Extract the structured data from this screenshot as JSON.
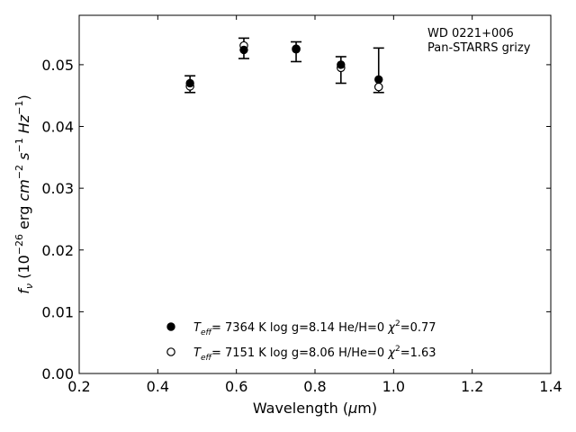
{
  "chart_data": {
    "type": "scatter",
    "title": "",
    "xlabel": "Wavelength",
    "xlabel_unit_prefix": "μ",
    "xlabel_unit": "m",
    "ylabel_prefix": "f",
    "ylabel_sub": "ν",
    "ylabel_scale": "(10",
    "ylabel_scale_exp": "−26",
    "ylabel_unit_erg": " erg ",
    "ylabel_unit_cm": "cm",
    "ylabel_unit_cm_exp": "−2",
    "ylabel_unit_s": "s",
    "ylabel_unit_s_exp": "−1",
    "ylabel_unit_Hz": "Hz",
    "ylabel_unit_Hz_exp": "−1",
    "ylabel_close": ")",
    "xlim": [
      0.2,
      1.4
    ],
    "ylim": [
      0.0,
      0.058
    ],
    "xticks": [
      0.2,
      0.4,
      0.6,
      0.8,
      1.0,
      1.2,
      1.4
    ],
    "xtick_labels": [
      "0.2",
      "0.4",
      "0.6",
      "0.8",
      "1.0",
      "1.2",
      "1.4"
    ],
    "yticks": [
      0.0,
      0.01,
      0.02,
      0.03,
      0.04,
      0.05
    ],
    "ytick_labels": [
      "0.00",
      "0.01",
      "0.02",
      "0.03",
      "0.04",
      "0.05"
    ],
    "grid": false,
    "annotation": [
      "WD 0221+006",
      "Pan-STARRS grizy"
    ],
    "annotation_position": "top-right",
    "observed": {
      "x": [
        0.482,
        0.619,
        0.752,
        0.866,
        0.962
      ],
      "y_low": [
        0.0455,
        0.051,
        0.0505,
        0.047,
        0.0455
      ],
      "y_high": [
        0.0482,
        0.0543,
        0.0537,
        0.0513,
        0.0527
      ]
    },
    "series": [
      {
        "marker": "filled-circle",
        "x": [
          0.482,
          0.619,
          0.752,
          0.866,
          0.962
        ],
        "y": [
          0.047,
          0.0524,
          0.0526,
          0.05,
          0.0476
        ],
        "legend": {
          "T": "T",
          "T_sub": "eff",
          "text": "=  7364 K  log g=8.14  He/H=0  ",
          "chi": "χ",
          "chi_exp": "2",
          "chi_val": "=0.77"
        }
      },
      {
        "marker": "open-circle",
        "x": [
          0.482,
          0.619,
          0.752,
          0.866,
          0.962
        ],
        "y": [
          0.0465,
          0.0531,
          0.0525,
          0.0495,
          0.0464
        ],
        "legend": {
          "T": "T",
          "T_sub": "eff",
          "text": "=  7151 K  log g=8.06  H/He=0  ",
          "chi": "χ",
          "chi_exp": "2",
          "chi_val": "=1.63"
        }
      }
    ],
    "legend_position": "bottom-center"
  }
}
